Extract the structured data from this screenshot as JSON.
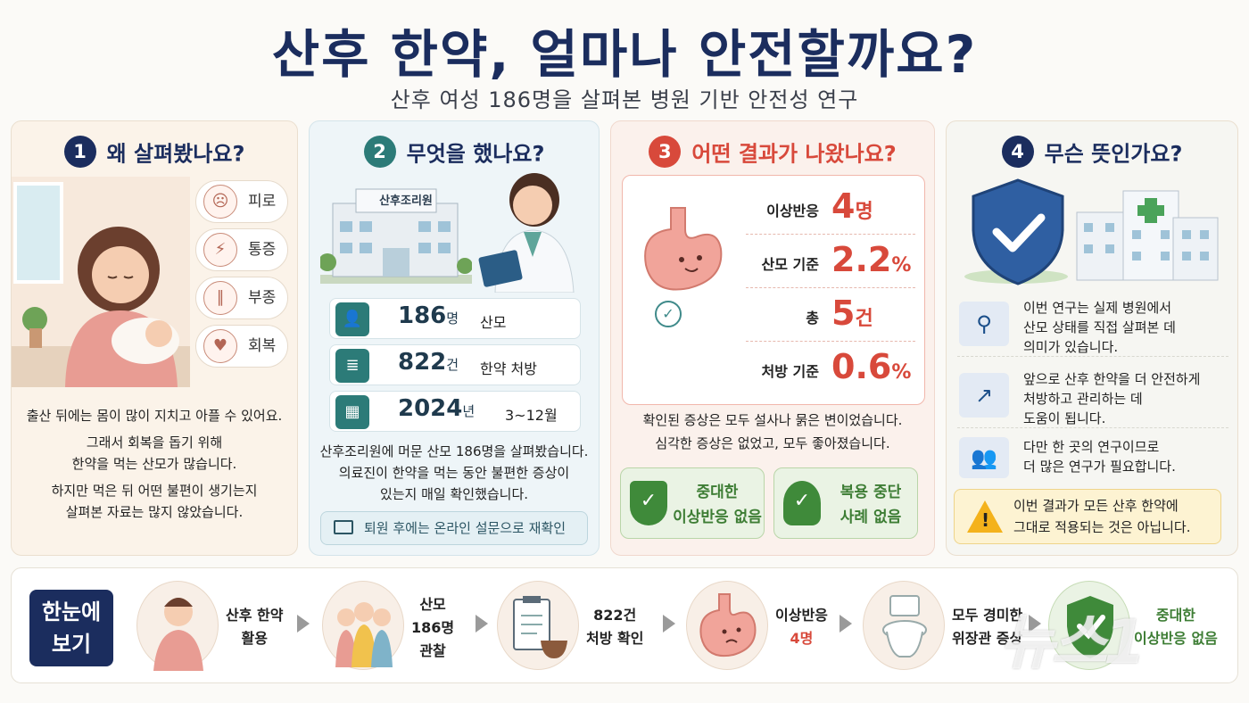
{
  "title": "산후 한약, 얼마나 안전할까요?",
  "subtitle": "산후 여성 186명을 살펴본 병원 기반 안전성 연구",
  "panel1": {
    "num": "1",
    "heading": "왜 살펴봤나요?",
    "chips": [
      "피로",
      "통증",
      "부종",
      "회복"
    ],
    "lines": [
      "출산 뒤에는 몸이 많이 지치고 아플 수 있어요.",
      "그래서 회복을 돕기 위해",
      "한약을 먹는 산모가 많습니다.",
      "하지만 먹은 뒤 어떤 불편이 생기는지",
      "살펴본 자료는 많지 않았습니다."
    ]
  },
  "panel2": {
    "num": "2",
    "heading": "무엇을 했나요?",
    "building_sign": "산후조리원",
    "stats": [
      {
        "big": "186",
        "unit": "명",
        "label": "산모"
      },
      {
        "big": "822",
        "unit": "건",
        "label": "한약 처방"
      },
      {
        "big": "2024",
        "unit": "년",
        "label": "3~12월"
      }
    ],
    "lines": [
      "산후조리원에 머문 산모 186명을 살펴봤습니다.",
      "의료진이 한약을 먹는 동안 불편한 증상이",
      "있는지 매일 확인했습니다."
    ],
    "note": "퇴원 후에는 온라인 설문으로 재확인"
  },
  "panel3": {
    "num": "3",
    "heading": "어떤 결과가 나왔나요?",
    "results": [
      {
        "label": "이상반응",
        "value": "4",
        "unit": "명"
      },
      {
        "label": "산모 기준",
        "value": "2.2",
        "unit": "%"
      },
      {
        "label": "총",
        "value": "5",
        "unit": "건"
      },
      {
        "label": "처방 기준",
        "value": "0.6",
        "unit": "%"
      }
    ],
    "lines": [
      "확인된 증상은 모두 설사나 묽은 변이었습니다.",
      "심각한 증상은 없었고, 모두 좋아졌습니다."
    ],
    "badge1": [
      "중대한",
      "이상반응 없음"
    ],
    "badge2": [
      "복용 중단",
      "사례 없음"
    ]
  },
  "panel4": {
    "num": "4",
    "heading": "무슨 뜻인가요?",
    "rows": [
      [
        "이번 연구는 실제 병원에서",
        "산모 상태를 직접 살펴본 데",
        "의미가 있습니다."
      ],
      [
        "앞으로 산후 한약을 더 안전하게",
        "처방하고 관리하는 데",
        "도움이 됩니다."
      ],
      [
        "다만 한 곳의 연구이므로",
        "더 많은 연구가 필요합니다."
      ]
    ],
    "warning": [
      "이번 결과가 모든 산후 한약에",
      "그대로 적용되는 것은 아닙니다."
    ]
  },
  "glance": {
    "label": [
      "한눈에",
      "보기"
    ],
    "steps": [
      [
        "산후 한약",
        "활용"
      ],
      [
        "산모",
        "186명",
        "관찰"
      ],
      [
        "822건",
        "처방 확인"
      ],
      [
        "이상반응",
        "4명"
      ],
      [
        "모두 경미한",
        "위장관 증상"
      ],
      [
        "중대한",
        "이상반응 없음"
      ]
    ]
  },
  "watermark": "뉴스1",
  "colors": {
    "navy": "#1b2d5e",
    "teal": "#2c7b78",
    "red": "#d8493b",
    "green": "#3d7d34"
  }
}
